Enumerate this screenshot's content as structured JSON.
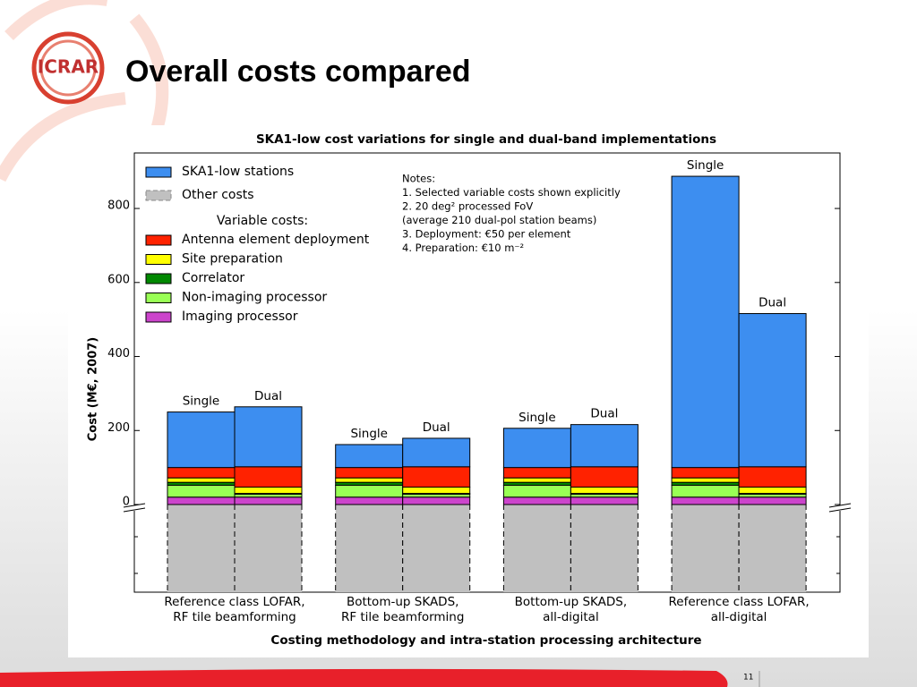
{
  "slide": {
    "title": "Overall costs compared",
    "logo": "ICRAR",
    "page_number": "11"
  },
  "chart_data": {
    "type": "stacked_bar",
    "title": "SKA1-low cost variations for single and dual-band implementations",
    "xlabel": "Costing methodology and intra-station processing architecture",
    "ylabel": "Cost (M€, 2007)",
    "categories": [
      "Single",
      "Dual",
      "Single",
      "Dual",
      "Single",
      "Dual",
      "Single",
      "Dual"
    ],
    "groups": [
      [
        "Reference class LOFAR,",
        "RF tile beamforming"
      ],
      [
        "Bottom-up SKADS,",
        "RF tile beamforming"
      ],
      [
        "Bottom-up SKADS,",
        "all-digital"
      ],
      [
        "Reference class LOFAR,",
        "all-digital"
      ]
    ],
    "series": [
      {
        "name": "SKA1-low stations",
        "color": "#3d8ef0",
        "values": [
          150,
          162,
          62,
          77,
          106,
          114,
          787,
          414
        ]
      },
      {
        "name": "Antenna element deployment",
        "color": "#ff2200",
        "values": [
          28,
          55,
          28,
          55,
          28,
          55,
          28,
          55
        ]
      },
      {
        "name": "Site preparation",
        "color": "#ffff00",
        "values": [
          12,
          17,
          12,
          17,
          12,
          17,
          12,
          17
        ]
      },
      {
        "name": "Correlator",
        "color": "#008800",
        "values": [
          8,
          2,
          8,
          2,
          8,
          2,
          8,
          2
        ]
      },
      {
        "name": "Non-imaging processor",
        "color": "#99ff55",
        "values": [
          32,
          8,
          32,
          8,
          32,
          8,
          32,
          8
        ]
      },
      {
        "name": "Imaging processor",
        "color": "#cc44cc",
        "values": [
          20,
          20,
          20,
          20,
          20,
          20,
          20,
          20
        ]
      }
    ],
    "other_costs": {
      "name": "Other costs",
      "color": "#c0c0c0"
    },
    "legend_heading": "Variable costs:",
    "notes": [
      "Notes:",
      "1. Selected variable costs shown explicitly",
      "2. 20 deg² processed FoV",
      "    (average 210 dual-pol station beams)",
      "3. Deployment: €50 per element",
      "4. Preparation: €10 m⁻²"
    ],
    "ylim": [
      0,
      950
    ],
    "yticks": [
      0,
      200,
      400,
      600,
      800
    ],
    "grid": false
  }
}
